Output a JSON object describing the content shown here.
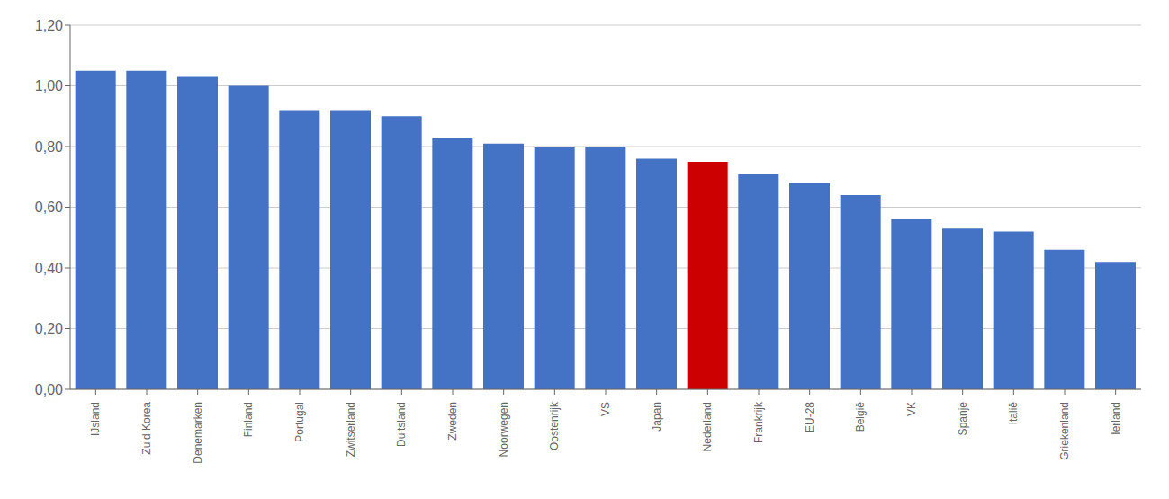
{
  "chart_data": {
    "type": "bar",
    "categories": [
      "IJsland",
      "Zuid Korea",
      "Denemarken",
      "Finland",
      "Portugal",
      "Zwitserland",
      "Duitsland",
      "Zweden",
      "Noorwegen",
      "Oostenrijk",
      "VS",
      "Japan",
      "Nederland",
      "Frankrijk",
      "EU-28",
      "België",
      "VK",
      "Spanje",
      "Italië",
      "Griekenland",
      "Ierland"
    ],
    "values": [
      1.05,
      1.05,
      1.03,
      1.0,
      0.92,
      0.92,
      0.9,
      0.83,
      0.81,
      0.8,
      0.8,
      0.76,
      0.75,
      0.71,
      0.68,
      0.64,
      0.56,
      0.53,
      0.52,
      0.46,
      0.42
    ],
    "colors": [
      "#4472C4",
      "#4472C4",
      "#4472C4",
      "#4472C4",
      "#4472C4",
      "#4472C4",
      "#4472C4",
      "#4472C4",
      "#4472C4",
      "#4472C4",
      "#4472C4",
      "#4472C4",
      "#CC0000",
      "#4472C4",
      "#4472C4",
      "#4472C4",
      "#4472C4",
      "#4472C4",
      "#4472C4",
      "#4472C4",
      "#4472C4"
    ],
    "ylim": [
      0,
      1.2
    ],
    "yticks": [
      {
        "value": 0.0,
        "label": "0,00"
      },
      {
        "value": 0.2,
        "label": "0,20"
      },
      {
        "value": 0.4,
        "label": "0,40"
      },
      {
        "value": 0.6,
        "label": "0,60"
      },
      {
        "value": 0.8,
        "label": "0,80"
      },
      {
        "value": 1.0,
        "label": "1,00"
      },
      {
        "value": 1.2,
        "label": "1,20"
      }
    ],
    "grid": true
  }
}
